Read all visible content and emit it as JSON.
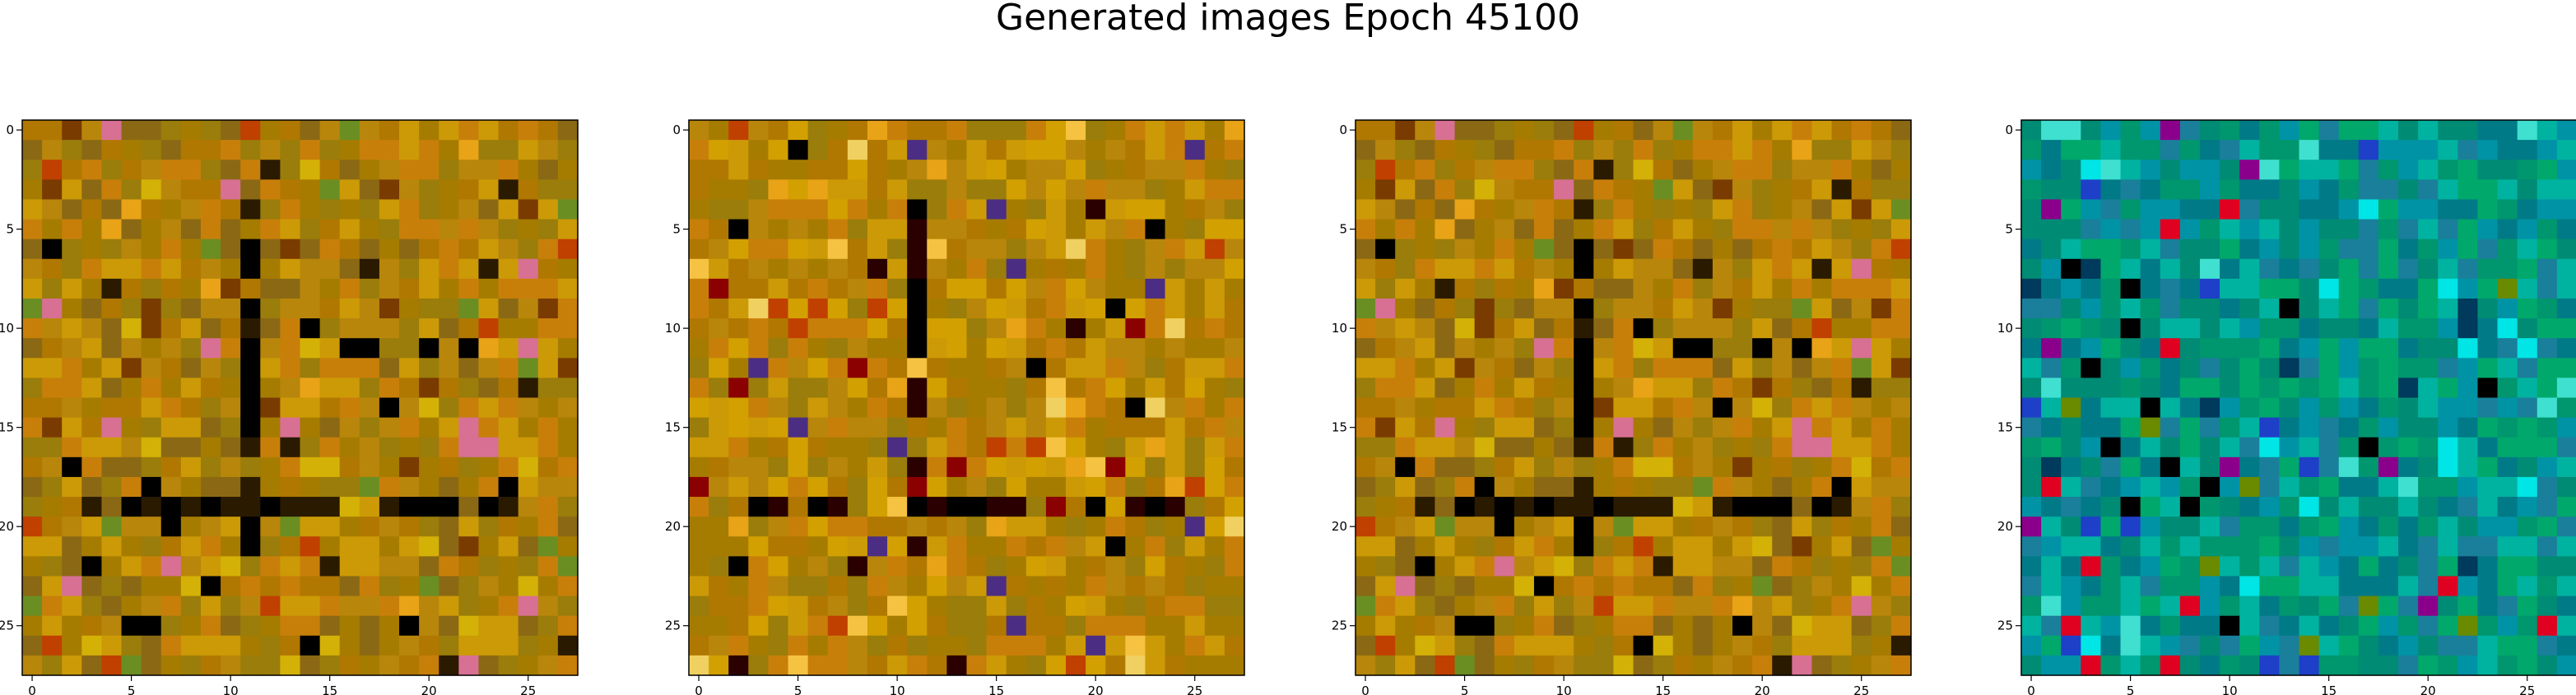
{
  "figure": {
    "title": "Generated images Epoch 45100"
  },
  "chart_data": [
    {
      "type": "heatmap",
      "title": "",
      "xlabel": "",
      "ylabel": "",
      "xlim": [
        -0.5,
        27.5
      ],
      "ylim": [
        27.5,
        -0.5
      ],
      "xticks": [
        0,
        5,
        10,
        15,
        20,
        25
      ],
      "yticks": [
        0,
        5,
        10,
        15,
        20,
        25
      ],
      "grid": false,
      "description": "28x28 RGB generated image, orange/olive noise",
      "palette": {
        "base": [
          "#b8860b",
          "#c87f0a",
          "#a67c00",
          "#8b6914",
          "#cc9a06",
          "#9a7d0a",
          "#b07800"
        ],
        "accent": [
          "#2a1a00",
          "#000000",
          "#d4b106",
          "#e8a317",
          "#6b8e23",
          "#c04000",
          "#7a3b00",
          "#d87093"
        ],
        "seed": 7
      },
      "dark_lines": {
        "rows": [
          19
        ],
        "cols": [
          11
        ]
      }
    },
    {
      "type": "heatmap",
      "title": "",
      "xlabel": "",
      "ylabel": "",
      "xlim": [
        -0.5,
        27.5
      ],
      "ylim": [
        27.5,
        -0.5
      ],
      "xticks": [
        0,
        5,
        10,
        15,
        20,
        25
      ],
      "yticks": [
        0,
        5,
        10,
        15,
        20,
        25
      ],
      "grid": false,
      "description": "28x28 RGB generated image, orange noise with bright top band",
      "palette": {
        "base": [
          "#b8860b",
          "#c87f0a",
          "#a67c00",
          "#cc9a06",
          "#b07800",
          "#d2a000",
          "#9a7d0a"
        ],
        "accent": [
          "#2a0000",
          "#000000",
          "#f5c242",
          "#e8a317",
          "#8b0000",
          "#4b2e83",
          "#c04000",
          "#f0d060"
        ],
        "seed": 19
      },
      "dark_lines": {
        "rows": [
          19
        ],
        "cols": [
          11
        ]
      }
    },
    {
      "type": "heatmap",
      "title": "",
      "xlabel": "",
      "ylabel": "",
      "xlim": [
        -0.5,
        27.5
      ],
      "ylim": [
        27.5,
        -0.5
      ],
      "xticks": [
        0,
        5,
        10,
        15,
        20,
        25
      ],
      "yticks": [
        0,
        5,
        10,
        15,
        20,
        25
      ],
      "grid": false,
      "description": "28x28 RGB generated image, orange/olive noise",
      "palette": {
        "base": [
          "#b8860b",
          "#c87f0a",
          "#a67c00",
          "#8b6914",
          "#cc9a06",
          "#9a7d0a",
          "#b07800"
        ],
        "accent": [
          "#2a1a00",
          "#000000",
          "#d4b106",
          "#e8a317",
          "#6b8e23",
          "#c04000",
          "#7a3b00",
          "#d87093"
        ],
        "seed": 7
      },
      "dark_lines": {
        "rows": [
          19
        ],
        "cols": [
          11
        ]
      }
    },
    {
      "type": "heatmap",
      "title": "",
      "xlabel": "",
      "ylabel": "",
      "xlim": [
        -0.5,
        27.5
      ],
      "ylim": [
        27.5,
        -0.5
      ],
      "xticks": [
        0,
        5,
        10,
        15,
        20,
        25
      ],
      "yticks": [
        0,
        5,
        10,
        15,
        20,
        25
      ],
      "grid": false,
      "description": "28x28 RGB generated image, teal/green/blue noise",
      "palette": {
        "base": [
          "#008b74",
          "#00a86b",
          "#0093a6",
          "#007a87",
          "#00b3a0",
          "#1a7f9a",
          "#00966e"
        ],
        "accent": [
          "#000000",
          "#00e5e5",
          "#1e3fc8",
          "#e00020",
          "#6a8a00",
          "#003a5c",
          "#40e0d0",
          "#8b008b"
        ],
        "seed": 31
      },
      "dark_lines": {
        "rows": [],
        "cols": []
      }
    }
  ]
}
